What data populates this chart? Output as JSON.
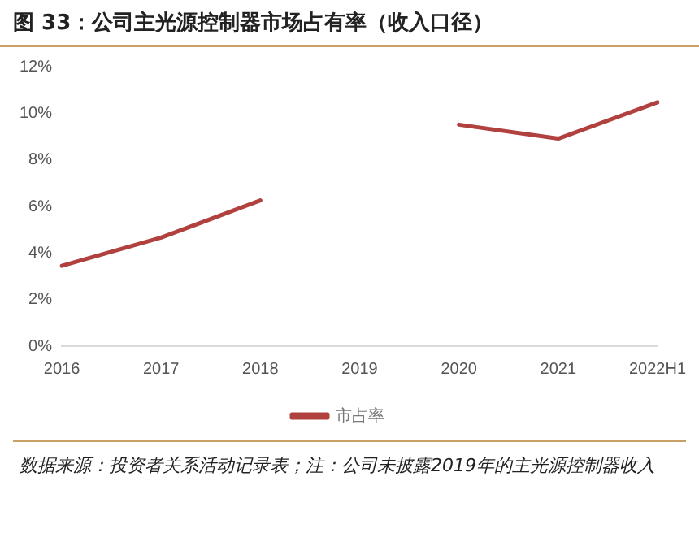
{
  "chart_data": {
    "type": "line",
    "title": "图 33：公司主光源控制器市场占有率（收入口径）",
    "categories": [
      "2016",
      "2017",
      "2018",
      "2019",
      "2020",
      "2021",
      "2022H1"
    ],
    "series": [
      {
        "name": "市占率",
        "color": "#b0413e",
        "values": [
          3.45,
          4.66,
          6.26,
          null,
          9.51,
          8.91,
          10.47
        ]
      }
    ],
    "ylim": [
      0,
      12
    ],
    "yticks": [
      {
        "value": 0,
        "label": "0%"
      },
      {
        "value": 2,
        "label": "2%"
      },
      {
        "value": 4,
        "label": "4%"
      },
      {
        "value": 6,
        "label": "6%"
      },
      {
        "value": 8,
        "label": "8%"
      },
      {
        "value": 10,
        "label": "10%"
      },
      {
        "value": 12,
        "label": "12%"
      }
    ],
    "grid": false,
    "legend": "bottom",
    "marker": "none",
    "line_style": "solid",
    "annotations": [
      "数据来源：投资者关系活动记录表；注：公司未披露2019年的主光源控制器收入"
    ]
  }
}
